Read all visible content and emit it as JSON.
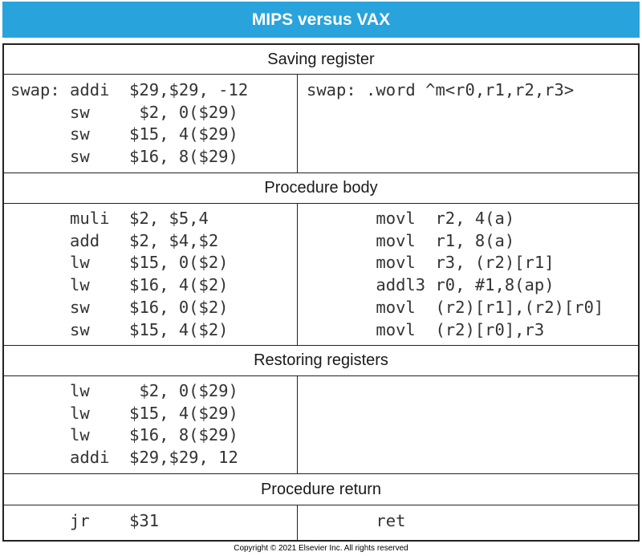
{
  "title": "MIPS versus VAX",
  "sections": [
    {
      "heading": "Saving register",
      "mips": "swap: addi  $29,$29, -12\n      sw     $2, 0($29)\n      sw    $15, 4($29)\n      sw    $16, 8($29)",
      "vax": "swap: .word ^m<r0,r1,r2,r3>"
    },
    {
      "heading": "Procedure body",
      "mips": "      muli  $2, $5,4\n      add   $2, $4,$2\n      lw    $15, 0($2)\n      lw    $16, 4($2)\n      sw    $16, 0($2)\n      sw    $15, 4($2)",
      "vax": "       movl  r2, 4(a)\n       movl  r1, 8(a)\n       movl  r3, (r2)[r1]\n       addl3 r0, #1,8(ap)\n       movl  (r2)[r1],(r2)[r0]\n       movl  (r2)[r0],r3"
    },
    {
      "heading": "Restoring registers",
      "mips": "      lw     $2, 0($29)\n      lw    $15, 4($29)\n      lw    $16, 8($29)\n      addi  $29,$29, 12",
      "vax": ""
    },
    {
      "heading": "Procedure return",
      "mips": "      jr    $31",
      "vax": "       ret"
    }
  ],
  "copyright": "Copyright © 2021 Elsevier Inc. All rights reserved"
}
